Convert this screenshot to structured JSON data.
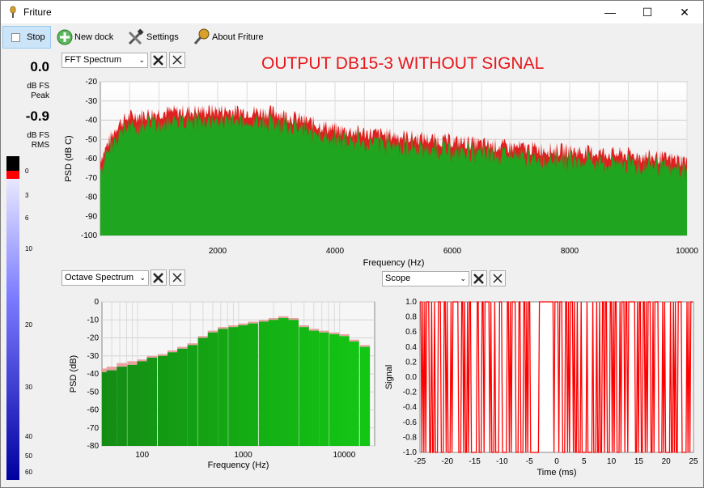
{
  "window": {
    "title": "Friture"
  },
  "toolbar": {
    "stop_label": "Stop",
    "new_dock_label": "New dock",
    "settings_label": "Settings",
    "about_label": "About Friture"
  },
  "annotation": "OUTPUT DB15-3 WITHOUT SIGNAL",
  "levels": {
    "peak_value": "0.0",
    "peak_unit": "dB FS",
    "peak_label": "Peak",
    "rms_value": "-0.9",
    "rms_unit": "dB FS",
    "rms_label": "RMS",
    "scale_ticks": [
      "0",
      "3",
      "6",
      "10",
      "20",
      "30",
      "40",
      "50",
      "60"
    ]
  },
  "docks": {
    "fft": {
      "combo": "FFT Spectrum"
    },
    "octave": {
      "combo": "Octave Spectrum"
    },
    "scope": {
      "combo": "Scope"
    }
  },
  "chart_data": [
    {
      "type": "bar",
      "name": "fft-spectrum",
      "xlabel": "Frequency (Hz)",
      "ylabel": "PSD (dB C)",
      "xlim": [
        0,
        10000
      ],
      "ylim": [
        -100,
        -20
      ],
      "xticks": [
        2000,
        4000,
        6000,
        8000,
        10000
      ],
      "yticks": [
        -20,
        -30,
        -40,
        -50,
        -60,
        -70,
        -80,
        -90,
        -100
      ],
      "envelope": {
        "x": [
          0,
          300,
          500,
          1000,
          2000,
          3000,
          4000,
          5000,
          6000,
          7000,
          8000,
          9000,
          10000
        ],
        "y": [
          -60,
          -42,
          -38,
          -36,
          -35,
          -36,
          -45,
          -48,
          -51,
          -54,
          -56,
          -58,
          -61
        ]
      },
      "colors": {
        "bar": "#1fa51f",
        "peak": "#e02020"
      },
      "grid": true
    },
    {
      "type": "bar",
      "name": "octave-spectrum",
      "xlabel": "Frequency (Hz)",
      "ylabel": "PSD (dB)",
      "xscale": "log",
      "xlim": [
        40,
        20000
      ],
      "ylim": [
        -80,
        0
      ],
      "xticks": [
        100,
        1000,
        10000
      ],
      "yticks": [
        0,
        -10,
        -20,
        -30,
        -40,
        -50,
        -60,
        -70,
        -80
      ],
      "bands_hz": [
        40,
        50,
        63,
        80,
        100,
        125,
        160,
        200,
        250,
        315,
        400,
        500,
        630,
        800,
        1000,
        1250,
        1600,
        2000,
        2500,
        3150,
        4000,
        5000,
        6300,
        8000,
        10000,
        12500,
        16000
      ],
      "values": [
        -39,
        -38,
        -36,
        -35,
        -33,
        -31,
        -30,
        -28,
        -26,
        -24,
        -20,
        -17,
        -15,
        -14,
        -13,
        -12,
        -11,
        -10,
        -9,
        -10,
        -14,
        -16,
        -17,
        -18,
        -19,
        -22,
        -25
      ],
      "peaks": [
        -37,
        -36,
        -34,
        -33,
        -32,
        -30,
        -29,
        -27,
        -25,
        -23,
        -19,
        -16,
        -14,
        -13,
        -12,
        -11,
        -10,
        -9,
        -8,
        -9,
        -13,
        -15,
        -16,
        -17,
        -18,
        -21,
        -24
      ],
      "colors": {
        "bar": "#22b622",
        "peak": "#e8a0a0"
      },
      "grid": true
    },
    {
      "type": "line",
      "name": "scope",
      "xlabel": "Time (ms)",
      "ylabel": "Signal",
      "xlim": [
        -25,
        25
      ],
      "ylim": [
        -1.0,
        1.0
      ],
      "xticks": [
        -25,
        -20,
        -15,
        -10,
        -5,
        0,
        5,
        10,
        15,
        20,
        25
      ],
      "yticks": [
        1.0,
        0.8,
        0.6,
        0.4,
        0.2,
        0.0,
        -0.2,
        -0.4,
        -0.6,
        -0.8,
        -1.0
      ],
      "color": "#ff0000",
      "grid": false
    }
  ]
}
